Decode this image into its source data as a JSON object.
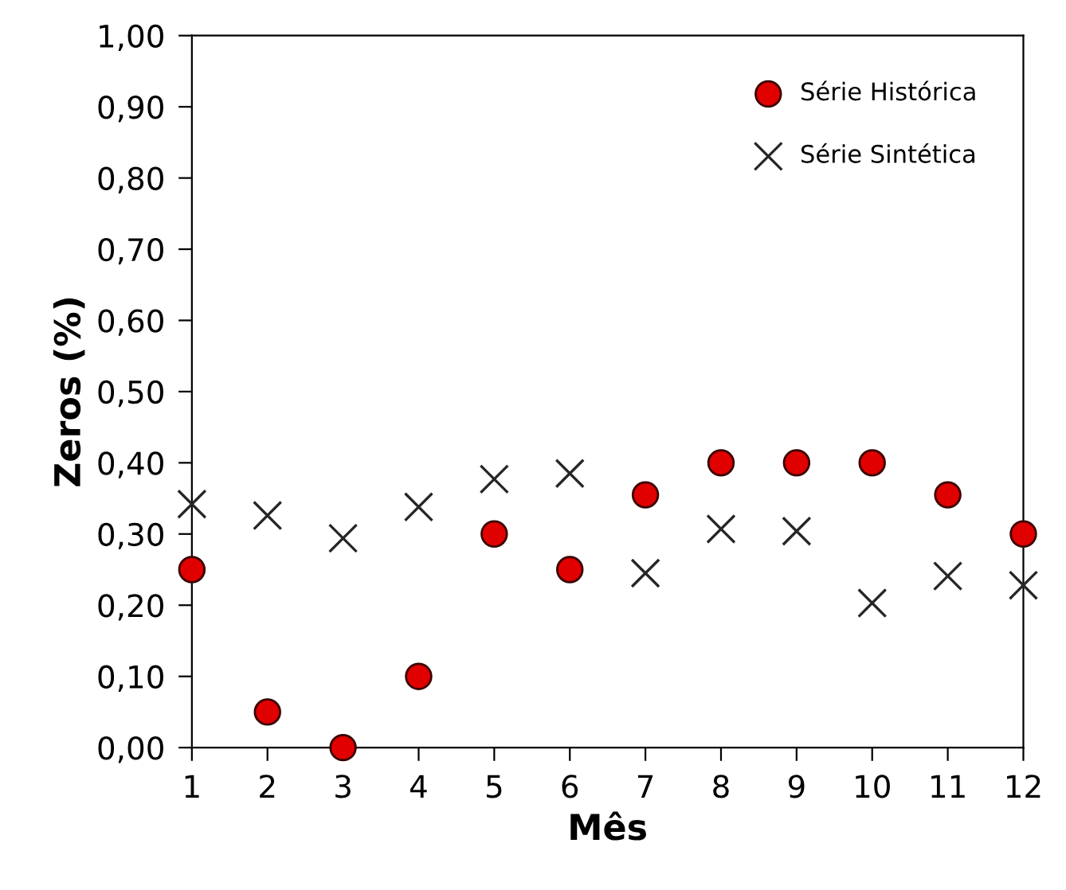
{
  "chart_data": {
    "type": "scatter",
    "xlabel": "Mês",
    "ylabel": "Zeros (%)",
    "x": [
      1,
      2,
      3,
      4,
      5,
      6,
      7,
      8,
      9,
      10,
      11,
      12
    ],
    "xlim": [
      1,
      12
    ],
    "xticks": [
      1,
      2,
      3,
      4,
      5,
      6,
      7,
      8,
      9,
      10,
      11,
      12
    ],
    "ylim": [
      0,
      1
    ],
    "yticks": [
      {
        "value": 0,
        "label": "0,00"
      },
      {
        "value": 0.1,
        "label": "0,10"
      },
      {
        "value": 0.2,
        "label": "0,20"
      },
      {
        "value": 0.3,
        "label": "0,30"
      },
      {
        "value": 0.4,
        "label": "0,40"
      },
      {
        "value": 0.5,
        "label": "0,50"
      },
      {
        "value": 0.6,
        "label": "0,60"
      },
      {
        "value": 0.7,
        "label": "0,70"
      },
      {
        "value": 0.8,
        "label": "0,80"
      },
      {
        "value": 0.9,
        "label": "0,90"
      },
      {
        "value": 1,
        "label": "1,00"
      }
    ],
    "grid": false,
    "legend": "top right",
    "series": [
      {
        "name": "Série Histórica",
        "color": "#e00000",
        "marker": "circle",
        "values": [
          0.25,
          0.05,
          0,
          0.1,
          0.3,
          0.25,
          0.355,
          0.4,
          0.4,
          0.4,
          0.355,
          0.3
        ]
      },
      {
        "name": "Série Sintética",
        "color": "#262626",
        "marker": "cross",
        "values": [
          0.342,
          0.326,
          0.294,
          0.338,
          0.377,
          0.385,
          0.245,
          0.307,
          0.304,
          0.203,
          0.241,
          0.228
        ]
      }
    ]
  }
}
